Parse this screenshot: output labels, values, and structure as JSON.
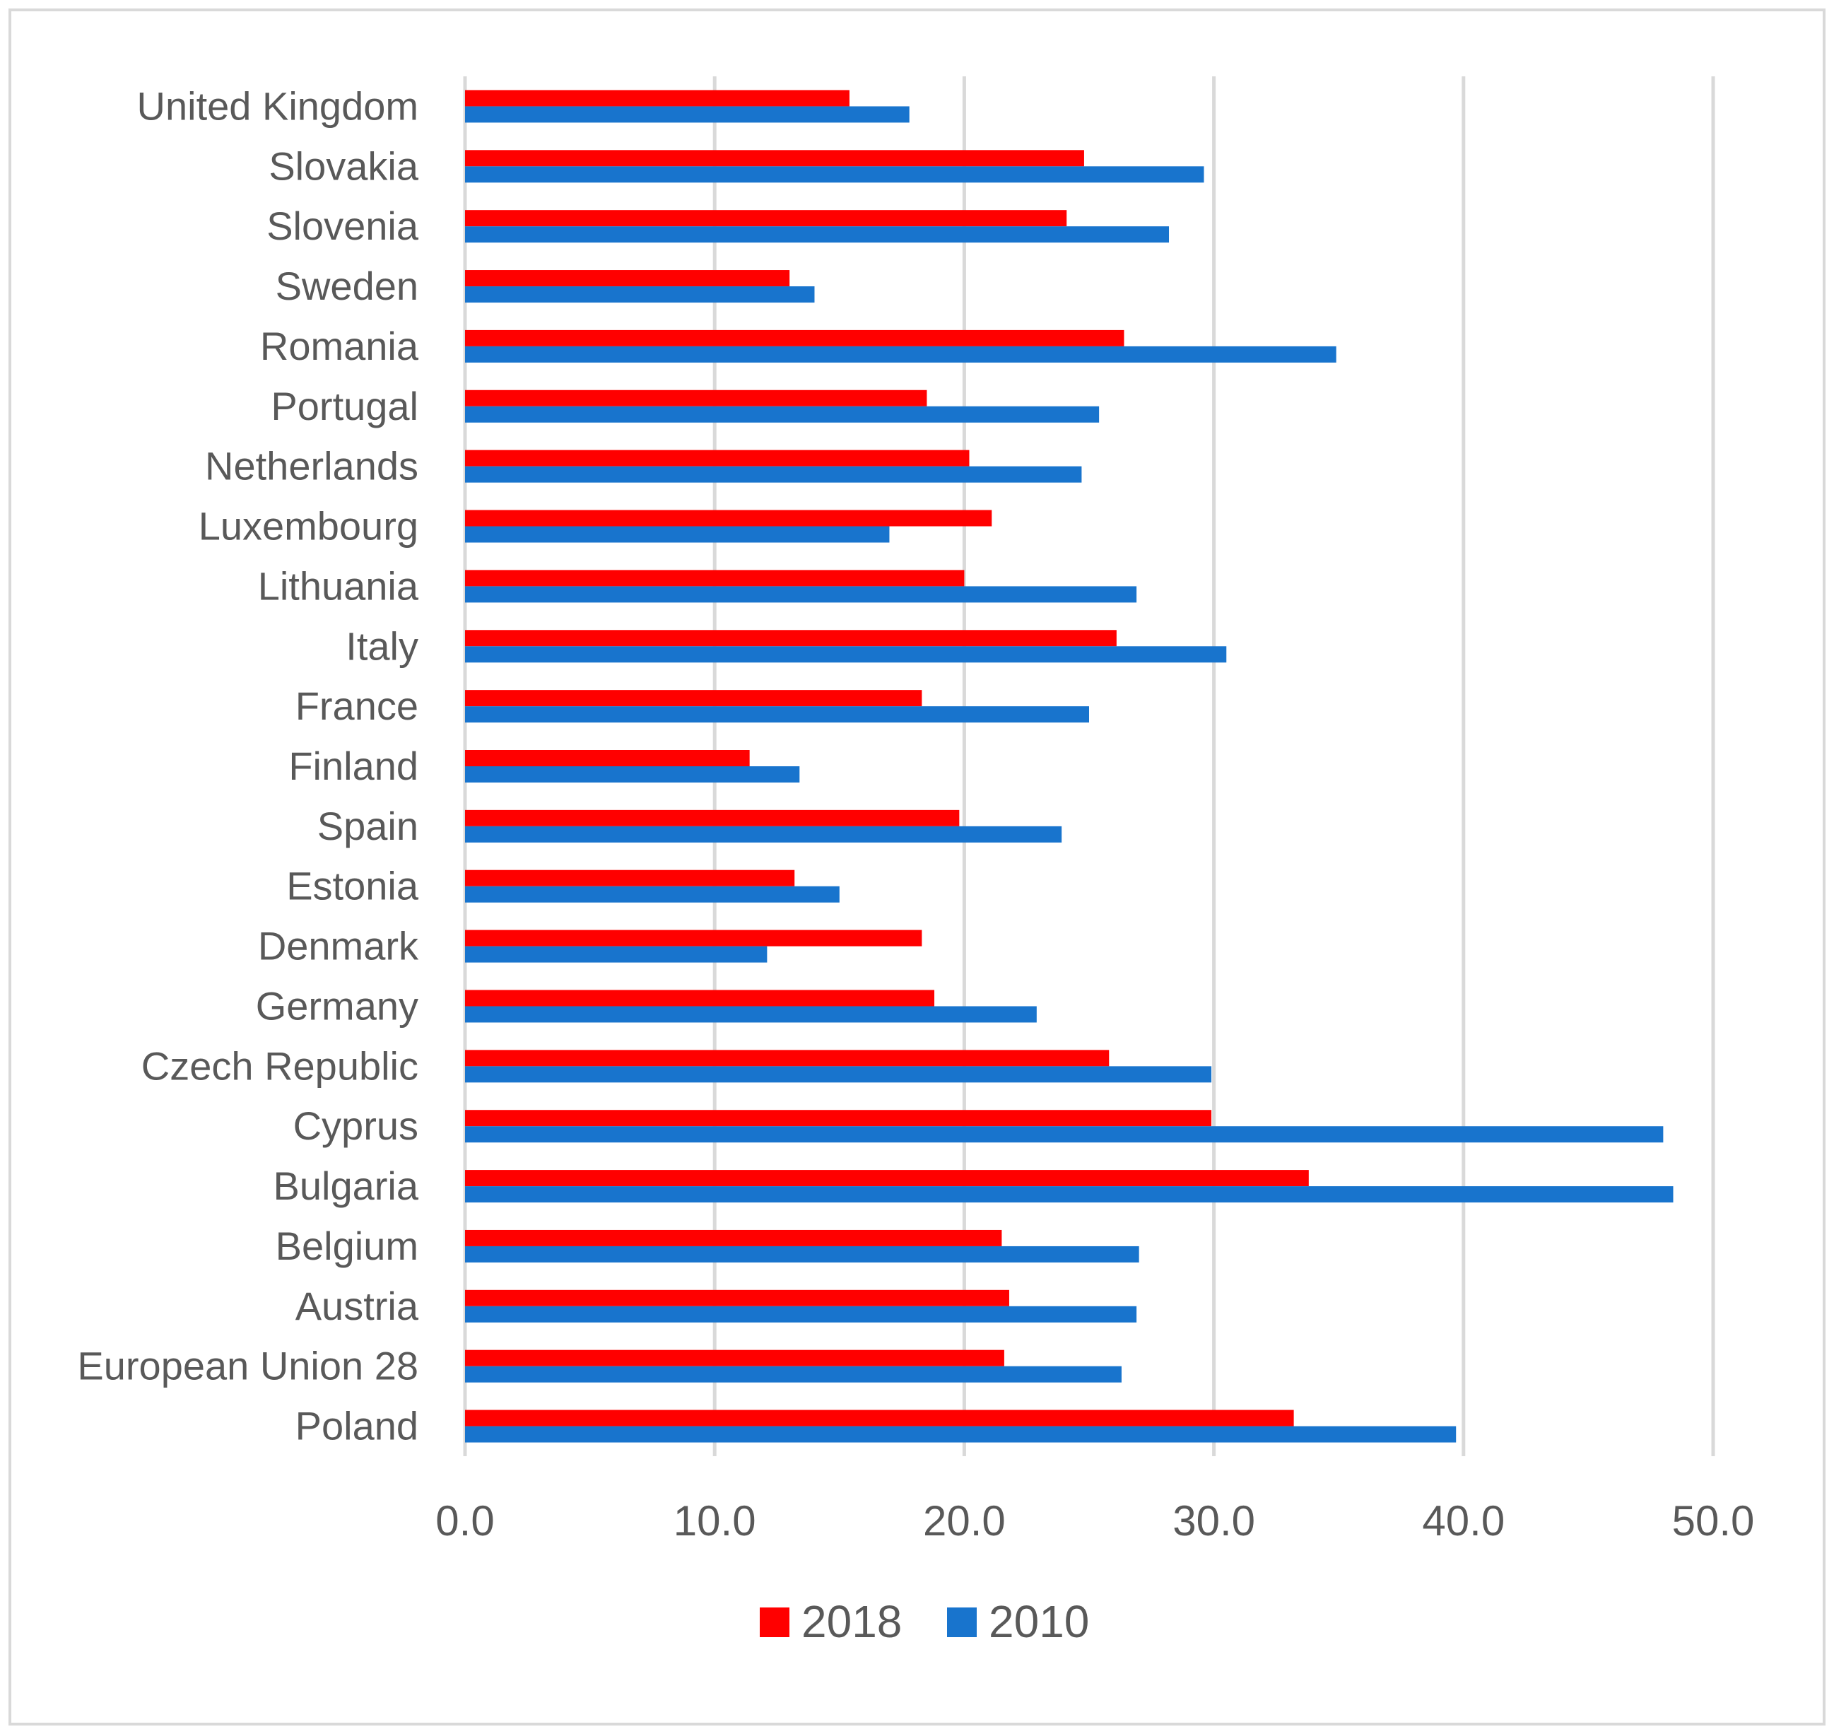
{
  "chart_data": {
    "type": "bar",
    "orientation": "horizontal",
    "title": "",
    "xlabel": "",
    "ylabel": "",
    "xlim": [
      0,
      50
    ],
    "xticks": [
      "0.0",
      "10.0",
      "20.0",
      "30.0",
      "40.0",
      "50.0"
    ],
    "grid": true,
    "legend_position": "bottom",
    "categories": [
      "United Kingdom",
      "Slovakia",
      "Slovenia",
      "Sweden",
      "Romania",
      "Portugal",
      "Netherlands",
      "Luxembourg",
      "Lithuania",
      "Italy",
      "France",
      "Finland",
      "Spain",
      "Estonia",
      "Denmark",
      "Germany",
      "Czech Republic",
      "Cyprus",
      "Bulgaria",
      "Belgium",
      "Austria",
      "European Union 28",
      "Poland"
    ],
    "series": [
      {
        "name": "2018",
        "color": "#ff0000",
        "values": [
          15.4,
          24.8,
          24.1,
          13.0,
          26.4,
          18.5,
          20.2,
          21.1,
          20.0,
          26.1,
          18.3,
          11.4,
          19.8,
          13.2,
          18.3,
          18.8,
          25.8,
          29.9,
          33.8,
          21.5,
          21.8,
          21.6,
          33.2
        ]
      },
      {
        "name": "2010",
        "color": "#1874cd",
        "values": [
          17.8,
          29.6,
          28.2,
          14.0,
          34.9,
          25.4,
          24.7,
          17.0,
          26.9,
          30.5,
          25.0,
          13.4,
          23.9,
          15.0,
          12.1,
          22.9,
          29.9,
          48.0,
          48.4,
          27.0,
          26.9,
          26.3,
          39.7
        ]
      }
    ]
  }
}
